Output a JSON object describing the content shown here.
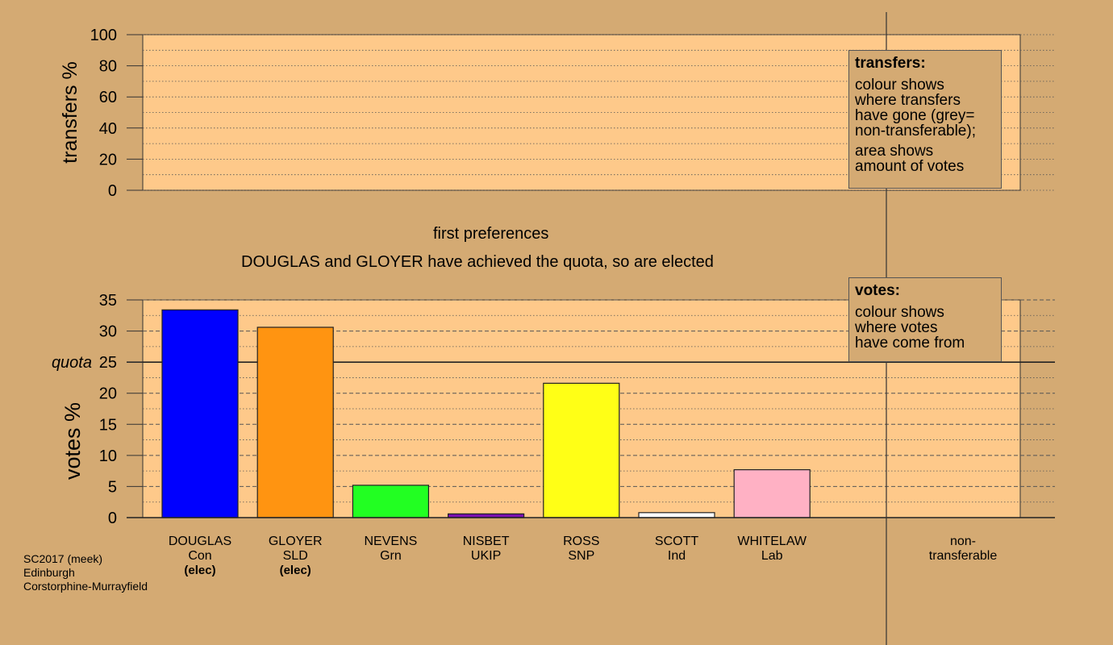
{
  "chart_data": [
    {
      "type": "bar",
      "ylabel": "transfers %",
      "ylim": [
        0,
        100
      ],
      "yticks": [
        0,
        20,
        40,
        60,
        80,
        100
      ],
      "values": []
    },
    {
      "type": "bar",
      "title": "first preferences",
      "subtitle": "DOUGLAS and GLOYER have achieved the quota, so are elected",
      "ylabel": "votes %",
      "ylim": [
        0,
        35
      ],
      "yticks": [
        0,
        5,
        10,
        15,
        20,
        25,
        30,
        35
      ],
      "quota": 25,
      "quota_label": "quota",
      "categories": [
        {
          "name": "DOUGLAS",
          "party": "Con",
          "note": "(elec)"
        },
        {
          "name": "GLOYER",
          "party": "SLD",
          "note": "(elec)"
        },
        {
          "name": "NEVENS",
          "party": "Grn",
          "note": ""
        },
        {
          "name": "NISBET",
          "party": "UKIP",
          "note": ""
        },
        {
          "name": "ROSS",
          "party": "SNP",
          "note": ""
        },
        {
          "name": "SCOTT",
          "party": "Ind",
          "note": ""
        },
        {
          "name": "WHITELAW",
          "party": "Lab",
          "note": ""
        }
      ],
      "values": [
        33.4,
        30.6,
        5.2,
        0.6,
        21.6,
        0.8,
        7.7
      ],
      "colors": [
        "#0000ff",
        "#ff9411",
        "#22ff22",
        "#7a0fb0",
        "#ffff16",
        "#ffffff",
        "#ffb1c4"
      ],
      "nontransferable_label": [
        "non-",
        "transferable"
      ]
    }
  ],
  "legend_transfers": {
    "title": "transfers:",
    "p1": [
      "colour shows",
      "where transfers",
      "have gone (grey=",
      "non-transferable);"
    ],
    "p2": [
      "area shows",
      "amount of votes"
    ]
  },
  "legend_votes": {
    "title": "votes:",
    "p1": [
      "colour shows",
      "where votes",
      "have come from"
    ]
  },
  "footer": [
    "SC2017 (meek)",
    "Edinburgh",
    "Corstorphine-Murrayfield"
  ]
}
